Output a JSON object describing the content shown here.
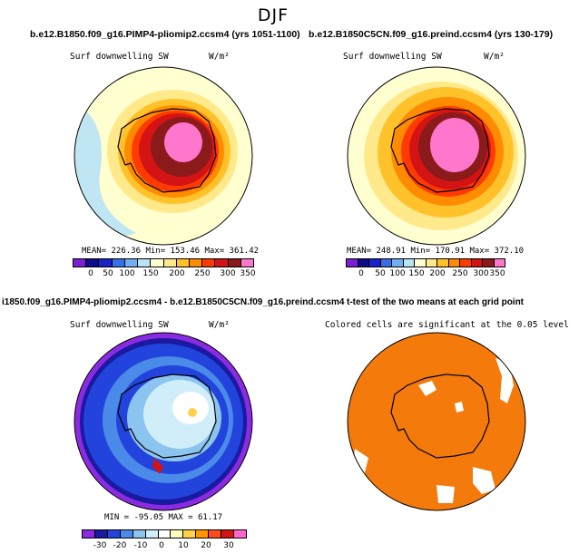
{
  "main_title": "DJF",
  "panels": [
    {
      "title": "b.e12.B1850.f09_g16.PIMP4-pliomip2.ccsm4 (yrs 1051-1100)",
      "variable": "Surf downwelling SW",
      "units": "W/m²",
      "stats": "MEAN= 226.36   Min= 153.46   Max= 361.42",
      "colorbar_ticks": [
        "0",
        "50",
        "100",
        "150",
        "200",
        "250",
        "300",
        "350"
      ]
    },
    {
      "title": "b.e12.B1850C5CN.f09_g16.preind.ccsm4 (yrs 130-179)",
      "variable": "Surf downwelling SW",
      "units": "W/m²",
      "stats": "MEAN= 248.91   Min= 170.91   Max= 372.10",
      "colorbar_ticks": [
        "0",
        "50",
        "100",
        "150",
        "200",
        "250",
        "300",
        "350"
      ]
    },
    {
      "title": "i1850.f09_g16.PIMP4-pliomip2.ccsm4 - b.e12.B1850C5CN.f09_g16.preind.ccsm4",
      "variable": "Surf downwelling SW",
      "units": "W/m²",
      "stats": "MIN = -95.05  MAX =  61.17",
      "colorbar_ticks": [
        "-30",
        "-20",
        "-10",
        "0",
        "10",
        "20",
        "30"
      ]
    },
    {
      "title": "t-test of the two means at each grid point",
      "subtitle": "Colored cells are significant at the 0.05 level"
    }
  ],
  "colors": {
    "abs_scale": [
      "#7a1fd6",
      "#0b0b8c",
      "#1a22cc",
      "#3a6ee8",
      "#6fb0f0",
      "#b9e3f7",
      "#ffffd0",
      "#ffe98a",
      "#ffc22a",
      "#ff8c00",
      "#ff3a00",
      "#d41414",
      "#8b1a1a",
      "#ff77cc"
    ],
    "diff_scale": [
      "#8a2be2",
      "#1a1aa0",
      "#2244dd",
      "#4a8ae8",
      "#8cc4f0",
      "#cfeefa",
      "#ffffff",
      "#ffffc0",
      "#ffd24a",
      "#ff9500",
      "#ff4a1a",
      "#d41414",
      "#ff66cc"
    ],
    "significance": "#f47a0c"
  }
}
